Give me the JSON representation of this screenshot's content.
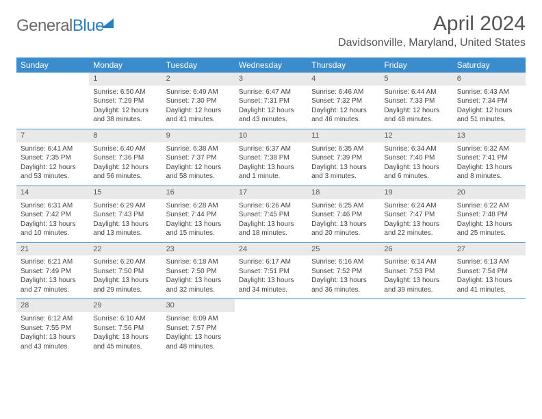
{
  "brand": {
    "part1": "General",
    "part2": "Blue"
  },
  "title": "April 2024",
  "location": "Davidsonville, Maryland, United States",
  "colors": {
    "header_bg": "#3a8ccc",
    "header_text": "#ffffff",
    "daynum_bg": "#e9e9e9",
    "rule": "#3a8ccc",
    "title_color": "#555555",
    "body_text": "#444444"
  },
  "day_labels": [
    "Sunday",
    "Monday",
    "Tuesday",
    "Wednesday",
    "Thursday",
    "Friday",
    "Saturday"
  ],
  "weeks": [
    [
      {
        "empty": true
      },
      {
        "n": "1",
        "sunrise": "Sunrise: 6:50 AM",
        "sunset": "Sunset: 7:29 PM",
        "dl1": "Daylight: 12 hours",
        "dl2": "and 38 minutes."
      },
      {
        "n": "2",
        "sunrise": "Sunrise: 6:49 AM",
        "sunset": "Sunset: 7:30 PM",
        "dl1": "Daylight: 12 hours",
        "dl2": "and 41 minutes."
      },
      {
        "n": "3",
        "sunrise": "Sunrise: 6:47 AM",
        "sunset": "Sunset: 7:31 PM",
        "dl1": "Daylight: 12 hours",
        "dl2": "and 43 minutes."
      },
      {
        "n": "4",
        "sunrise": "Sunrise: 6:46 AM",
        "sunset": "Sunset: 7:32 PM",
        "dl1": "Daylight: 12 hours",
        "dl2": "and 46 minutes."
      },
      {
        "n": "5",
        "sunrise": "Sunrise: 6:44 AM",
        "sunset": "Sunset: 7:33 PM",
        "dl1": "Daylight: 12 hours",
        "dl2": "and 48 minutes."
      },
      {
        "n": "6",
        "sunrise": "Sunrise: 6:43 AM",
        "sunset": "Sunset: 7:34 PM",
        "dl1": "Daylight: 12 hours",
        "dl2": "and 51 minutes."
      }
    ],
    [
      {
        "n": "7",
        "sunrise": "Sunrise: 6:41 AM",
        "sunset": "Sunset: 7:35 PM",
        "dl1": "Daylight: 12 hours",
        "dl2": "and 53 minutes."
      },
      {
        "n": "8",
        "sunrise": "Sunrise: 6:40 AM",
        "sunset": "Sunset: 7:36 PM",
        "dl1": "Daylight: 12 hours",
        "dl2": "and 56 minutes."
      },
      {
        "n": "9",
        "sunrise": "Sunrise: 6:38 AM",
        "sunset": "Sunset: 7:37 PM",
        "dl1": "Daylight: 12 hours",
        "dl2": "and 58 minutes."
      },
      {
        "n": "10",
        "sunrise": "Sunrise: 6:37 AM",
        "sunset": "Sunset: 7:38 PM",
        "dl1": "Daylight: 13 hours",
        "dl2": "and 1 minute."
      },
      {
        "n": "11",
        "sunrise": "Sunrise: 6:35 AM",
        "sunset": "Sunset: 7:39 PM",
        "dl1": "Daylight: 13 hours",
        "dl2": "and 3 minutes."
      },
      {
        "n": "12",
        "sunrise": "Sunrise: 6:34 AM",
        "sunset": "Sunset: 7:40 PM",
        "dl1": "Daylight: 13 hours",
        "dl2": "and 6 minutes."
      },
      {
        "n": "13",
        "sunrise": "Sunrise: 6:32 AM",
        "sunset": "Sunset: 7:41 PM",
        "dl1": "Daylight: 13 hours",
        "dl2": "and 8 minutes."
      }
    ],
    [
      {
        "n": "14",
        "sunrise": "Sunrise: 6:31 AM",
        "sunset": "Sunset: 7:42 PM",
        "dl1": "Daylight: 13 hours",
        "dl2": "and 10 minutes."
      },
      {
        "n": "15",
        "sunrise": "Sunrise: 6:29 AM",
        "sunset": "Sunset: 7:43 PM",
        "dl1": "Daylight: 13 hours",
        "dl2": "and 13 minutes."
      },
      {
        "n": "16",
        "sunrise": "Sunrise: 6:28 AM",
        "sunset": "Sunset: 7:44 PM",
        "dl1": "Daylight: 13 hours",
        "dl2": "and 15 minutes."
      },
      {
        "n": "17",
        "sunrise": "Sunrise: 6:26 AM",
        "sunset": "Sunset: 7:45 PM",
        "dl1": "Daylight: 13 hours",
        "dl2": "and 18 minutes."
      },
      {
        "n": "18",
        "sunrise": "Sunrise: 6:25 AM",
        "sunset": "Sunset: 7:46 PM",
        "dl1": "Daylight: 13 hours",
        "dl2": "and 20 minutes."
      },
      {
        "n": "19",
        "sunrise": "Sunrise: 6:24 AM",
        "sunset": "Sunset: 7:47 PM",
        "dl1": "Daylight: 13 hours",
        "dl2": "and 22 minutes."
      },
      {
        "n": "20",
        "sunrise": "Sunrise: 6:22 AM",
        "sunset": "Sunset: 7:48 PM",
        "dl1": "Daylight: 13 hours",
        "dl2": "and 25 minutes."
      }
    ],
    [
      {
        "n": "21",
        "sunrise": "Sunrise: 6:21 AM",
        "sunset": "Sunset: 7:49 PM",
        "dl1": "Daylight: 13 hours",
        "dl2": "and 27 minutes."
      },
      {
        "n": "22",
        "sunrise": "Sunrise: 6:20 AM",
        "sunset": "Sunset: 7:50 PM",
        "dl1": "Daylight: 13 hours",
        "dl2": "and 29 minutes."
      },
      {
        "n": "23",
        "sunrise": "Sunrise: 6:18 AM",
        "sunset": "Sunset: 7:50 PM",
        "dl1": "Daylight: 13 hours",
        "dl2": "and 32 minutes."
      },
      {
        "n": "24",
        "sunrise": "Sunrise: 6:17 AM",
        "sunset": "Sunset: 7:51 PM",
        "dl1": "Daylight: 13 hours",
        "dl2": "and 34 minutes."
      },
      {
        "n": "25",
        "sunrise": "Sunrise: 6:16 AM",
        "sunset": "Sunset: 7:52 PM",
        "dl1": "Daylight: 13 hours",
        "dl2": "and 36 minutes."
      },
      {
        "n": "26",
        "sunrise": "Sunrise: 6:14 AM",
        "sunset": "Sunset: 7:53 PM",
        "dl1": "Daylight: 13 hours",
        "dl2": "and 39 minutes."
      },
      {
        "n": "27",
        "sunrise": "Sunrise: 6:13 AM",
        "sunset": "Sunset: 7:54 PM",
        "dl1": "Daylight: 13 hours",
        "dl2": "and 41 minutes."
      }
    ],
    [
      {
        "n": "28",
        "sunrise": "Sunrise: 6:12 AM",
        "sunset": "Sunset: 7:55 PM",
        "dl1": "Daylight: 13 hours",
        "dl2": "and 43 minutes."
      },
      {
        "n": "29",
        "sunrise": "Sunrise: 6:10 AM",
        "sunset": "Sunset: 7:56 PM",
        "dl1": "Daylight: 13 hours",
        "dl2": "and 45 minutes."
      },
      {
        "n": "30",
        "sunrise": "Sunrise: 6:09 AM",
        "sunset": "Sunset: 7:57 PM",
        "dl1": "Daylight: 13 hours",
        "dl2": "and 48 minutes."
      },
      {
        "empty": true
      },
      {
        "empty": true
      },
      {
        "empty": true
      },
      {
        "empty": true
      }
    ]
  ]
}
